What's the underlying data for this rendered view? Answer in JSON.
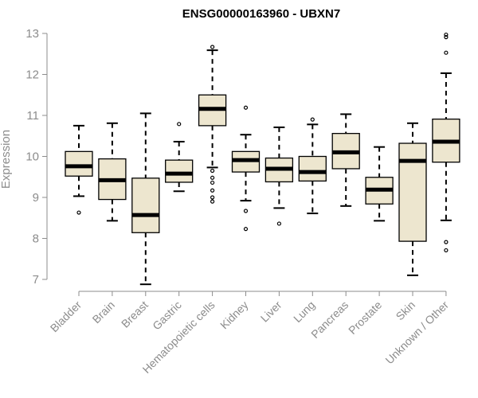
{
  "chart_data": {
    "type": "box",
    "title": "ENSG00000163960 - UBXN7",
    "xlabel": "",
    "ylabel": "Expression",
    "ylim": [
      7,
      13
    ],
    "yticks": [
      "7",
      "8",
      "9",
      "10",
      "11",
      "12",
      "13"
    ],
    "colors": {
      "box_fill": "#ede6cf",
      "stroke": "#000000",
      "axis_text": "#8c8c8c"
    },
    "categories": [
      "Bladder",
      "Brain",
      "Breast",
      "Gastric",
      "Hematopoietic cells",
      "Kidney",
      "Liver",
      "Lung",
      "Pancreas",
      "Prostate",
      "Skin",
      "Unknown / Other"
    ],
    "boxes": [
      {
        "category": "Bladder",
        "whisker_low": 9.03,
        "q1": 9.52,
        "median": 9.76,
        "q3": 10.12,
        "whisker_high": 10.75,
        "outliers": [
          8.63
        ]
      },
      {
        "category": "Brain",
        "whisker_low": 8.43,
        "q1": 8.95,
        "median": 9.42,
        "q3": 9.94,
        "whisker_high": 10.81,
        "outliers": []
      },
      {
        "category": "Breast",
        "whisker_low": 6.88,
        "q1": 8.14,
        "median": 8.57,
        "q3": 9.47,
        "whisker_high": 11.05,
        "outliers": []
      },
      {
        "category": "Gastric",
        "whisker_low": 9.15,
        "q1": 9.37,
        "median": 9.58,
        "q3": 9.91,
        "whisker_high": 10.36,
        "outliers": [
          10.79
        ]
      },
      {
        "category": "Hematopoietic cells",
        "whisker_low": 9.73,
        "q1": 10.75,
        "median": 11.16,
        "q3": 11.5,
        "whisker_high": 12.59,
        "outliers": [
          12.67,
          9.65,
          9.48,
          9.36,
          9.17,
          9.0,
          8.9
        ]
      },
      {
        "category": "Kidney",
        "whisker_low": 8.92,
        "q1": 9.62,
        "median": 9.91,
        "q3": 10.12,
        "whisker_high": 10.53,
        "outliers": [
          11.19,
          8.67,
          8.23
        ]
      },
      {
        "category": "Liver",
        "whisker_low": 8.74,
        "q1": 9.38,
        "median": 9.7,
        "q3": 9.96,
        "whisker_high": 10.71,
        "outliers": [
          8.36
        ]
      },
      {
        "category": "Lung",
        "whisker_low": 8.61,
        "q1": 9.4,
        "median": 9.62,
        "q3": 10.0,
        "whisker_high": 10.78,
        "outliers": [
          10.9
        ]
      },
      {
        "category": "Pancreas",
        "whisker_low": 8.79,
        "q1": 9.7,
        "median": 10.1,
        "q3": 10.56,
        "whisker_high": 11.03,
        "outliers": []
      },
      {
        "category": "Prostate",
        "whisker_low": 8.43,
        "q1": 8.84,
        "median": 9.19,
        "q3": 9.49,
        "whisker_high": 10.23,
        "outliers": []
      },
      {
        "category": "Skin",
        "whisker_low": 7.1,
        "q1": 7.93,
        "median": 9.89,
        "q3": 10.32,
        "whisker_high": 10.81,
        "outliers": []
      },
      {
        "category": "Unknown / Other",
        "whisker_low": 8.44,
        "q1": 9.86,
        "median": 10.36,
        "q3": 10.91,
        "whisker_high": 12.03,
        "outliers": [
          12.97,
          12.91,
          12.53,
          7.91,
          7.71
        ]
      }
    ]
  }
}
